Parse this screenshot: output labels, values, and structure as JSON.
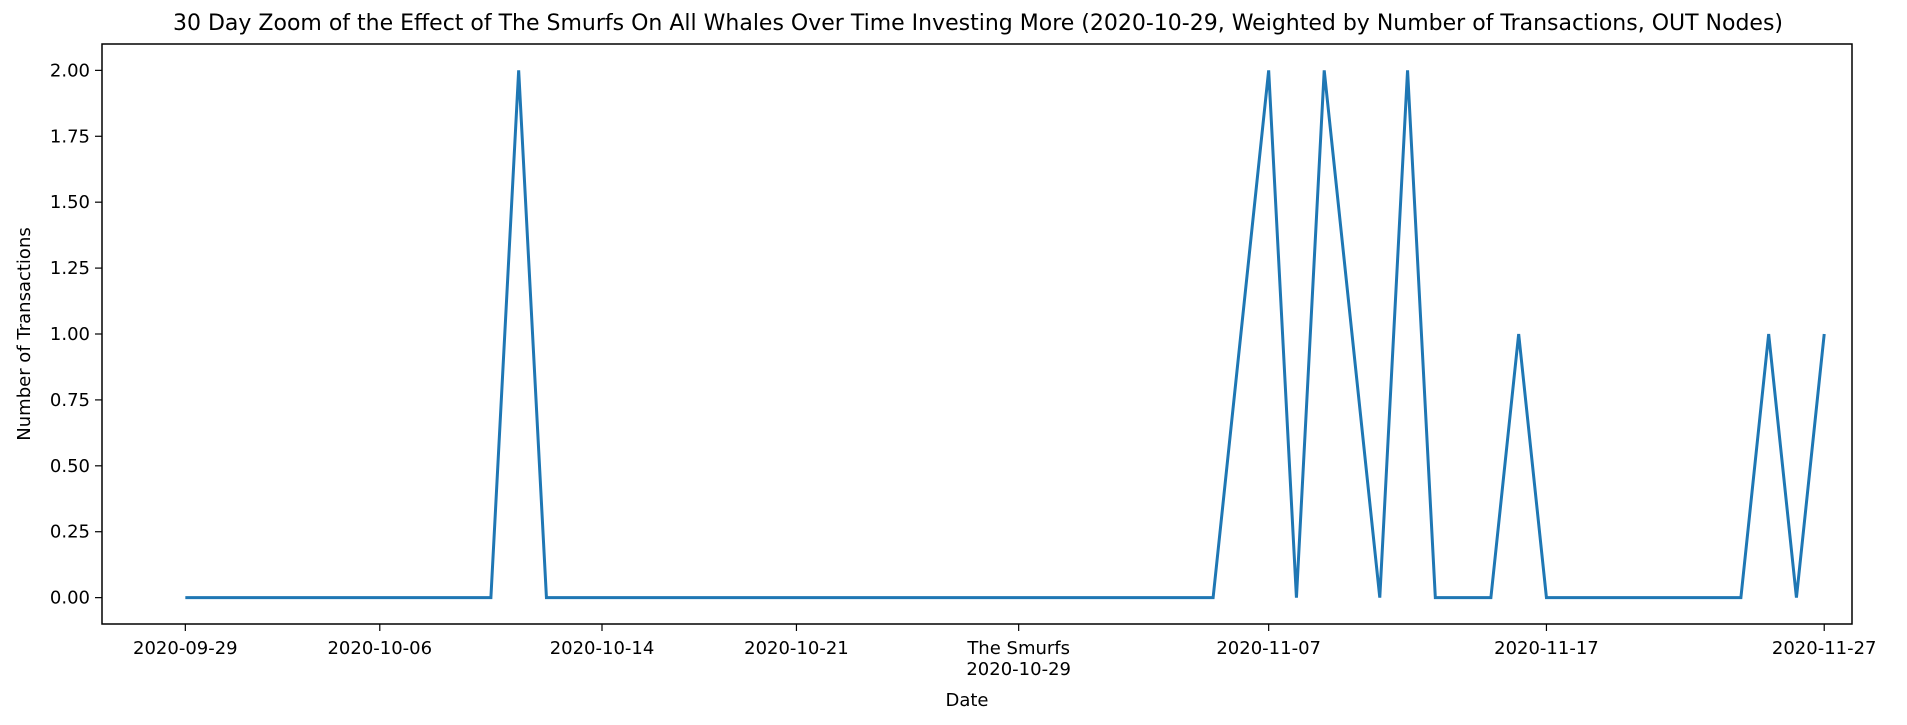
{
  "chart_data": {
    "type": "line",
    "title": "30 Day Zoom of the Effect of The Smurfs On All Whales Over Time Investing More (2020-10-29, Weighted by Number of Transactions, OUT Nodes)",
    "xlabel": "Date",
    "ylabel": "Number of Transactions",
    "ylim": [
      -0.1,
      2.1
    ],
    "xlim": [
      "2020-09-26",
      "2020-11-28"
    ],
    "grid": false,
    "x_ticks": [
      {
        "date": "2020-09-29",
        "label": [
          "2020-09-29"
        ]
      },
      {
        "date": "2020-10-06",
        "label": [
          "2020-10-06"
        ]
      },
      {
        "date": "2020-10-14",
        "label": [
          "2020-10-14"
        ]
      },
      {
        "date": "2020-10-21",
        "label": [
          "2020-10-21"
        ]
      },
      {
        "date": "2020-10-29",
        "label": [
          "The Smurfs",
          "2020-10-29"
        ]
      },
      {
        "date": "2020-11-07",
        "label": [
          "2020-11-07"
        ]
      },
      {
        "date": "2020-11-17",
        "label": [
          "2020-11-17"
        ]
      },
      {
        "date": "2020-11-27",
        "label": [
          "2020-11-27"
        ]
      }
    ],
    "y_ticks": [
      0.0,
      0.25,
      0.5,
      0.75,
      1.0,
      1.25,
      1.5,
      1.75,
      2.0
    ],
    "y_tick_labels": [
      "0.00",
      "0.25",
      "0.50",
      "0.75",
      "1.00",
      "1.25",
      "1.50",
      "1.75",
      "2.00"
    ],
    "series": [
      {
        "color": "#1f77b4",
        "points": [
          {
            "x": "2020-09-29",
            "y": 0
          },
          {
            "x": "2020-10-10",
            "y": 0
          },
          {
            "x": "2020-10-11",
            "y": 2
          },
          {
            "x": "2020-10-12",
            "y": 0
          },
          {
            "x": "2020-11-05",
            "y": 0
          },
          {
            "x": "2020-11-07",
            "y": 2
          },
          {
            "x": "2020-11-08",
            "y": 0
          },
          {
            "x": "2020-11-09",
            "y": 2
          },
          {
            "x": "2020-11-11",
            "y": 0
          },
          {
            "x": "2020-11-12",
            "y": 2
          },
          {
            "x": "2020-11-13",
            "y": 0
          },
          {
            "x": "2020-11-15",
            "y": 0
          },
          {
            "x": "2020-11-16",
            "y": 1
          },
          {
            "x": "2020-11-17",
            "y": 0
          },
          {
            "x": "2020-11-24",
            "y": 0
          },
          {
            "x": "2020-11-25",
            "y": 1
          },
          {
            "x": "2020-11-26",
            "y": 0
          },
          {
            "x": "2020-11-27",
            "y": 1
          }
        ]
      }
    ]
  }
}
